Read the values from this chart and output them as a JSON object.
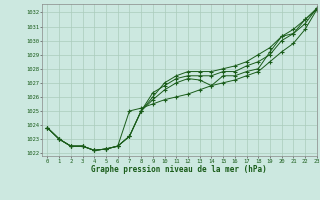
{
  "title": "Graphe pression niveau de la mer (hPa)",
  "bg_color": "#cce8e0",
  "line_color": "#1a5c1a",
  "grid_color": "#aaccbb",
  "xlim": [
    -0.5,
    23
  ],
  "ylim": [
    1021.8,
    1032.6
  ],
  "yticks": [
    1022,
    1023,
    1024,
    1025,
    1026,
    1027,
    1028,
    1029,
    1030,
    1031,
    1032
  ],
  "xticks": [
    0,
    1,
    2,
    3,
    4,
    5,
    6,
    7,
    8,
    9,
    10,
    11,
    12,
    13,
    14,
    15,
    16,
    17,
    18,
    19,
    20,
    21,
    22,
    23
  ],
  "series": {
    "line1": [
      [
        0,
        1023.8
      ],
      [
        1,
        1023.0
      ],
      [
        2,
        1022.5
      ],
      [
        3,
        1022.5
      ],
      [
        4,
        1022.2
      ],
      [
        5,
        1022.3
      ],
      [
        6,
        1022.5
      ],
      [
        7,
        1023.2
      ],
      [
        8,
        1025.0
      ],
      [
        9,
        1025.8
      ],
      [
        10,
        1026.5
      ],
      [
        11,
        1027.0
      ],
      [
        12,
        1027.3
      ],
      [
        13,
        1027.2
      ],
      [
        14,
        1026.8
      ],
      [
        15,
        1027.5
      ],
      [
        16,
        1027.5
      ],
      [
        17,
        1027.8
      ],
      [
        18,
        1028.0
      ],
      [
        19,
        1029.2
      ],
      [
        20,
        1030.3
      ],
      [
        21,
        1030.5
      ],
      [
        22,
        1031.5
      ],
      [
        23,
        1032.2
      ]
    ],
    "line2": [
      [
        0,
        1023.8
      ],
      [
        1,
        1023.0
      ],
      [
        2,
        1022.5
      ],
      [
        3,
        1022.5
      ],
      [
        4,
        1022.2
      ],
      [
        5,
        1022.3
      ],
      [
        6,
        1022.5
      ],
      [
        7,
        1025.0
      ],
      [
        8,
        1025.2
      ],
      [
        9,
        1025.5
      ],
      [
        10,
        1025.8
      ],
      [
        11,
        1026.0
      ],
      [
        12,
        1026.2
      ],
      [
        13,
        1026.5
      ],
      [
        14,
        1026.8
      ],
      [
        15,
        1027.0
      ],
      [
        16,
        1027.2
      ],
      [
        17,
        1027.5
      ],
      [
        18,
        1027.8
      ],
      [
        19,
        1028.5
      ],
      [
        20,
        1029.2
      ],
      [
        21,
        1029.8
      ],
      [
        22,
        1030.8
      ],
      [
        23,
        1032.2
      ]
    ],
    "line3": [
      [
        0,
        1023.8
      ],
      [
        1,
        1023.0
      ],
      [
        2,
        1022.5
      ],
      [
        3,
        1022.5
      ],
      [
        4,
        1022.2
      ],
      [
        5,
        1022.3
      ],
      [
        6,
        1022.5
      ],
      [
        7,
        1023.2
      ],
      [
        8,
        1025.0
      ],
      [
        9,
        1026.3
      ],
      [
        10,
        1026.8
      ],
      [
        11,
        1027.3
      ],
      [
        12,
        1027.5
      ],
      [
        13,
        1027.5
      ],
      [
        14,
        1027.5
      ],
      [
        15,
        1027.8
      ],
      [
        16,
        1027.8
      ],
      [
        17,
        1028.2
      ],
      [
        18,
        1028.5
      ],
      [
        19,
        1029.0
      ],
      [
        20,
        1030.0
      ],
      [
        21,
        1030.5
      ],
      [
        22,
        1031.2
      ],
      [
        23,
        1032.3
      ]
    ],
    "line4": [
      [
        0,
        1023.8
      ],
      [
        1,
        1023.0
      ],
      [
        2,
        1022.5
      ],
      [
        3,
        1022.5
      ],
      [
        4,
        1022.2
      ],
      [
        5,
        1022.3
      ],
      [
        6,
        1022.5
      ],
      [
        7,
        1023.2
      ],
      [
        8,
        1025.0
      ],
      [
        9,
        1026.0
      ],
      [
        10,
        1027.0
      ],
      [
        11,
        1027.5
      ],
      [
        12,
        1027.8
      ],
      [
        13,
        1027.8
      ],
      [
        14,
        1027.8
      ],
      [
        15,
        1028.0
      ],
      [
        16,
        1028.2
      ],
      [
        17,
        1028.5
      ],
      [
        18,
        1029.0
      ],
      [
        19,
        1029.5
      ],
      [
        20,
        1030.3
      ],
      [
        21,
        1030.8
      ],
      [
        22,
        1031.5
      ],
      [
        23,
        1032.3
      ]
    ]
  }
}
